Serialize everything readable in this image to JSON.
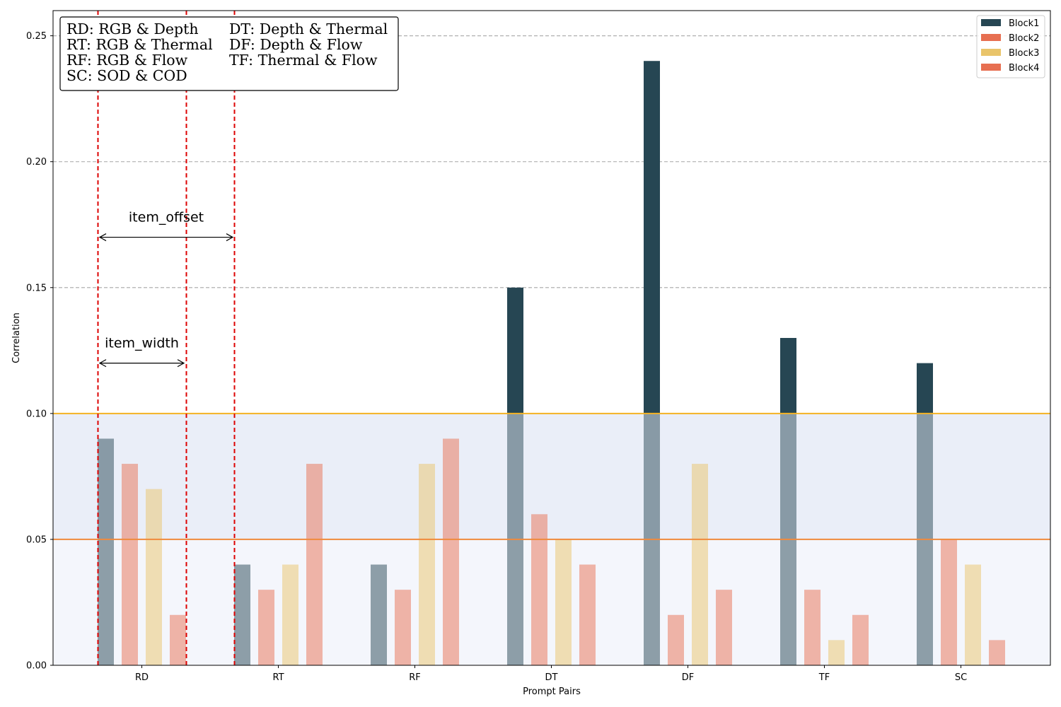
{
  "chart_data": {
    "type": "bar",
    "xlabel": "Prompt Pairs",
    "ylabel": "Correlation",
    "ylim": [
      0,
      0.26
    ],
    "yticks": [
      "0.00",
      "0.05",
      "0.10",
      "0.15",
      "0.20",
      "0.25"
    ],
    "categories": [
      "RD",
      "RT",
      "RF",
      "DT",
      "DF",
      "TF",
      "SC"
    ],
    "series": [
      {
        "name": "Block1",
        "color": "#264653",
        "values": [
          0.09,
          0.04,
          0.04,
          0.15,
          0.24,
          0.13,
          0.12
        ]
      },
      {
        "name": "Block2",
        "color": "#E76F51",
        "values": [
          0.08,
          0.03,
          0.03,
          0.06,
          0.02,
          0.03,
          0.05
        ]
      },
      {
        "name": "Block3",
        "color": "#E9C46A",
        "values": [
          0.07,
          0.04,
          0.08,
          0.05,
          0.08,
          0.01,
          0.04
        ]
      },
      {
        "name": "Block4",
        "color": "#E76F51",
        "values": [
          0.02,
          0.08,
          0.09,
          0.04,
          0.03,
          0.02,
          0.01
        ]
      }
    ],
    "grid": "horizontal dashed",
    "legend_position": "top-right",
    "reference_lines": [
      {
        "y": 0.1,
        "color": "#F4B223"
      },
      {
        "y": 0.05,
        "color": "#F08A3C"
      }
    ],
    "shaded_bands": [
      {
        "from": 0.05,
        "to": 0.1,
        "color": "#EAEEF8"
      },
      {
        "from": 0,
        "to": 0.05,
        "color": "#F4F6FC"
      }
    ],
    "abbreviations": [
      [
        "RD: RGB & Depth",
        "DT: Depth & Thermal"
      ],
      [
        "RT: RGB & Thermal",
        "DF: Depth & Flow"
      ],
      [
        "RF: RGB & Flow",
        "TF: Thermal & Flow"
      ],
      [
        "SC: SOD & COD",
        ""
      ]
    ],
    "annotations": [
      {
        "text": "item_offset",
        "y": 0.17
      },
      {
        "text": "item_width",
        "y": 0.12
      }
    ],
    "marker_line_color": "#DD0000"
  }
}
